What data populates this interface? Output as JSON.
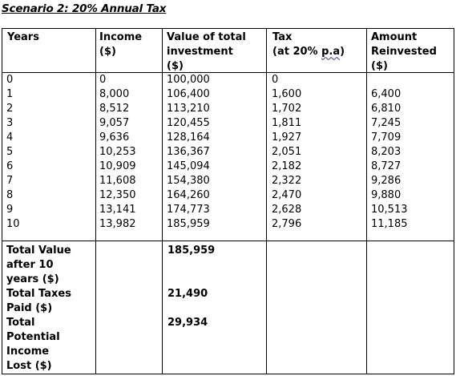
{
  "title": "Scenario 2: 20% Annual Tax",
  "headers": {
    "years": "Years",
    "income_line1": "Income",
    "income_line2": "($)",
    "value_line1": "Value of total",
    "value_line2": "investment",
    "value_line3": "($)",
    "tax_line1": "Tax",
    "tax_line2_a": "(at 20% ",
    "tax_line2_b": "p.a",
    "tax_line2_c": ")",
    "reinvest_line1": "Amount",
    "reinvest_line2": "Reinvested",
    "reinvest_line3": "($)"
  },
  "rows": [
    {
      "year": "0",
      "income": "0",
      "value": "100,000",
      "tax": "0",
      "reinvested": ""
    },
    {
      "year": "1",
      "income": "8,000",
      "value": "106,400",
      "tax": "1,600",
      "reinvested": "6,400"
    },
    {
      "year": "2",
      "income": "8,512",
      "value": "113,210",
      "tax": "1,702",
      "reinvested": "6,810"
    },
    {
      "year": "3",
      "income": "9,057",
      "value": "120,455",
      "tax": "1,811",
      "reinvested": "7,245"
    },
    {
      "year": "4",
      "income": "9,636",
      "value": "128,164",
      "tax": "1,927",
      "reinvested": "7,709"
    },
    {
      "year": "5",
      "income": "10,253",
      "value": "136,367",
      "tax": "2,051",
      "reinvested": "8,203"
    },
    {
      "year": "6",
      "income": "10,909",
      "value": "145,094",
      "tax": "2,182",
      "reinvested": "8,727"
    },
    {
      "year": "7",
      "income": "11,608",
      "value": "154,380",
      "tax": "2,322",
      "reinvested": "9,286"
    },
    {
      "year": "8",
      "income": "12,350",
      "value": "164,260",
      "tax": "2,470",
      "reinvested": "9,880"
    },
    {
      "year": "9",
      "income": "13,141",
      "value": "174,773",
      "tax": "2,628",
      "reinvested": "10,513"
    },
    {
      "year": "10",
      "income": "13,982",
      "value": "185,959",
      "tax": "2,796",
      "reinvested": "11,185"
    }
  ],
  "footer": {
    "label_lines": [
      "Total Value",
      "after 10",
      "years ($)",
      "Total Taxes",
      "Paid ($)",
      "Total",
      "Potential",
      "Income",
      "Lost ($)"
    ],
    "total_value": "185,959",
    "total_taxes": "21,490",
    "income_lost": "29,934"
  }
}
